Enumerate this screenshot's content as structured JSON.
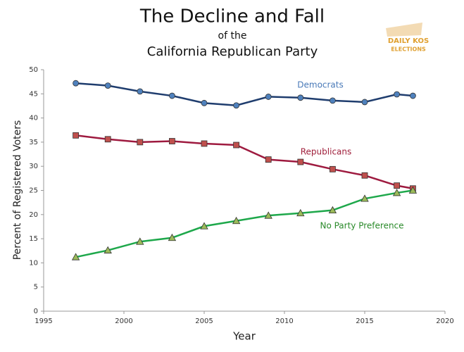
{
  "chart_data": {
    "type": "line",
    "title": "The Decline and Fall",
    "subtitle": "of the",
    "subtitle2": "California Republican Party",
    "logo": [
      "DAILY KOS",
      "ELECTIONS"
    ],
    "x_label": "Year",
    "y_label": "Percent of Registered Voters",
    "x": [
      1997,
      1999,
      2001,
      2003,
      2005,
      2007,
      2009,
      2011,
      2013,
      2015,
      2017,
      2018
    ],
    "series": [
      {
        "name": "Democrats",
        "color": "#1f3d6e",
        "marker_color": "#4f81bd",
        "label_color": "#4a7ab8",
        "marker": "circle",
        "values": [
          47.2,
          46.7,
          45.5,
          44.6,
          43.1,
          42.6,
          44.4,
          44.2,
          43.6,
          43.3,
          44.9,
          44.6
        ]
      },
      {
        "name": "Republicans",
        "color": "#9e1a3f",
        "marker_color": "#c0504d",
        "label_color": "#a0203c",
        "marker": "square",
        "values": [
          36.4,
          35.6,
          35.0,
          35.2,
          34.7,
          34.4,
          31.4,
          30.9,
          29.4,
          28.1,
          26.0,
          25.4
        ]
      },
      {
        "name": "No Party Preference",
        "color": "#1ea84b",
        "marker_color": "#9bbb59",
        "label_color": "#2a8a2a",
        "marker": "triangle",
        "values": [
          11.2,
          12.6,
          14.4,
          15.2,
          17.6,
          18.7,
          19.8,
          20.3,
          20.9,
          23.3,
          24.5,
          25.0
        ]
      }
    ],
    "xlim": [
      1995,
      2020
    ],
    "xticks": [
      1995,
      2000,
      2005,
      2010,
      2015,
      2020
    ],
    "ylim": [
      0,
      50
    ],
    "yticks": [
      0,
      5,
      10,
      15,
      20,
      25,
      30,
      35,
      40,
      45,
      50
    ],
    "grid": false
  }
}
